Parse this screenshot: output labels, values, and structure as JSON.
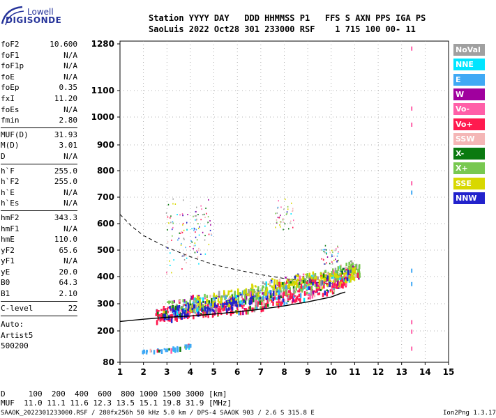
{
  "logo": {
    "top": "Lowell",
    "bottom": "DIGISONDE"
  },
  "header": {
    "line1": "Station YYYY DAY   DDD HHMMSS P1   FFS S AXN PPS IGA PS",
    "line2": "SaoLuis 2022 Oct28 301 233000 RSF    1 715 100 00- 11"
  },
  "parameters": [
    {
      "name": "foF2",
      "value": "10.600"
    },
    {
      "name": "foF1",
      "value": "N/A"
    },
    {
      "name": "foF1p",
      "value": "N/A"
    },
    {
      "name": "foE",
      "value": "N/A"
    },
    {
      "name": "foEp",
      "value": "0.35"
    },
    {
      "name": "fxI",
      "value": "11.20"
    },
    {
      "name": "foEs",
      "value": "N/A"
    },
    {
      "name": "fmin",
      "value": "2.80"
    },
    {
      "name": "MUF(D)",
      "value": "31.93"
    },
    {
      "name": "M(D)",
      "value": "3.01"
    },
    {
      "name": "D",
      "value": "N/A"
    },
    {
      "name": "h`F",
      "value": "255.0"
    },
    {
      "name": "h`F2",
      "value": "255.0"
    },
    {
      "name": "h`E",
      "value": "N/A"
    },
    {
      "name": "h`Es",
      "value": "N/A"
    },
    {
      "name": "hmF2",
      "value": "343.3"
    },
    {
      "name": "hmF1",
      "value": "N/A"
    },
    {
      "name": "hmE",
      "value": "110.0"
    },
    {
      "name": "yF2",
      "value": "65.6"
    },
    {
      "name": "yF1",
      "value": "N/A"
    },
    {
      "name": "yE",
      "value": "20.0"
    },
    {
      "name": "B0",
      "value": "64.3"
    },
    {
      "name": "B1",
      "value": "2.10"
    },
    {
      "name": "C-level",
      "value": "22"
    }
  ],
  "notes": [
    "Auto:",
    "Artist5",
    "500200"
  ],
  "legend": [
    {
      "label": "NoVal",
      "color": "#a0a0a0"
    },
    {
      "label": "NNE",
      "color": "#00e5ff"
    },
    {
      "label": "E",
      "color": "#3fa9f5"
    },
    {
      "label": "W",
      "color": "#a0009e"
    },
    {
      "label": "Vo-",
      "color": "#ff5fa8"
    },
    {
      "label": "Vo+",
      "color": "#ff1a4f"
    },
    {
      "label": "SSW",
      "color": "#f4b6b6"
    },
    {
      "label": "X-",
      "color": "#0a7a10"
    },
    {
      "label": "X+",
      "color": "#78c850"
    },
    {
      "label": "SSE",
      "color": "#d8d800"
    },
    {
      "label": "NNW",
      "color": "#2222cc"
    }
  ],
  "footer": {
    "d_row": "D     100  200  400  600  800 1000 1500 3000 [km]",
    "muf_row": "MUF  11.0 11.1 11.6 12.3 13.5 15.1 19.8 31.9 [MHz]",
    "info": "SAAOK_2022301233000.RSF / 280fx256h 50 kHz 5.0 km / DPS-4 SAAOK 903 / 2.6 S 315.8 E",
    "version": "Ion2Png 1.3.17"
  },
  "chart_data": {
    "type": "scatter",
    "x_ticks": [
      "1",
      "2",
      "3",
      "4",
      "5",
      "6",
      "7",
      "8",
      "9",
      "10",
      "11",
      "12",
      "13",
      "14",
      "15"
    ],
    "y_ticks": [
      "80",
      "200",
      "300",
      "400",
      "500",
      "600",
      "700",
      "800",
      "900",
      "1000",
      "1100",
      "1280"
    ],
    "xlim": [
      1,
      15
    ],
    "ylim": [
      80,
      1280
    ],
    "y_scale": "nonlinear",
    "grid": true,
    "legend_placement": "right",
    "profile_curve": [
      [
        1,
        235
      ],
      [
        2,
        243
      ],
      [
        3,
        250
      ],
      [
        4,
        255
      ],
      [
        5,
        262
      ],
      [
        6,
        270
      ],
      [
        7,
        280
      ],
      [
        8,
        292
      ],
      [
        9,
        307
      ],
      [
        10,
        325
      ],
      [
        10.4,
        338
      ],
      [
        10.6,
        343
      ]
    ],
    "muf_curve": [
      [
        1,
        635
      ],
      [
        1.5,
        590
      ],
      [
        2,
        555
      ],
      [
        3,
        510
      ],
      [
        4,
        475
      ],
      [
        5,
        445
      ],
      [
        6,
        425
      ],
      [
        7,
        407
      ],
      [
        8,
        393
      ],
      [
        9,
        382
      ],
      [
        10,
        373
      ],
      [
        10.6,
        368
      ]
    ],
    "trace_clusters": [
      {
        "series": "Vo+",
        "points": [
          [
            2.5,
            260
          ],
          [
            3,
            268
          ],
          [
            4,
            275
          ],
          [
            5,
            285
          ],
          [
            6,
            295
          ],
          [
            7,
            310
          ],
          [
            8,
            325
          ],
          [
            9,
            345
          ],
          [
            10,
            370
          ],
          [
            10.5,
            395
          ],
          [
            10.8,
            420
          ]
        ]
      },
      {
        "series": "X+",
        "points": [
          [
            3,
            290
          ],
          [
            4,
            300
          ],
          [
            5,
            315
          ],
          [
            6,
            330
          ],
          [
            7,
            345
          ],
          [
            8,
            365
          ],
          [
            9,
            385
          ],
          [
            10,
            410
          ],
          [
            10.8,
            440
          ],
          [
            11.2,
            430
          ]
        ]
      },
      {
        "series": "NNW",
        "points": [
          [
            2.8,
            270
          ],
          [
            4,
            285
          ],
          [
            5.5,
            300
          ],
          [
            6,
            320
          ],
          [
            8,
            340
          ]
        ]
      },
      {
        "series": "SSE",
        "points": [
          [
            4,
            310
          ],
          [
            6,
            340
          ],
          [
            8,
            385
          ],
          [
            9,
            400
          ],
          [
            10,
            395
          ],
          [
            11,
            415
          ]
        ]
      },
      {
        "series": "E",
        "points": [
          [
            1.9,
            125
          ],
          [
            2.5,
            130
          ],
          [
            3,
            135
          ],
          [
            3.5,
            140
          ],
          [
            4,
            150
          ]
        ]
      }
    ]
  }
}
